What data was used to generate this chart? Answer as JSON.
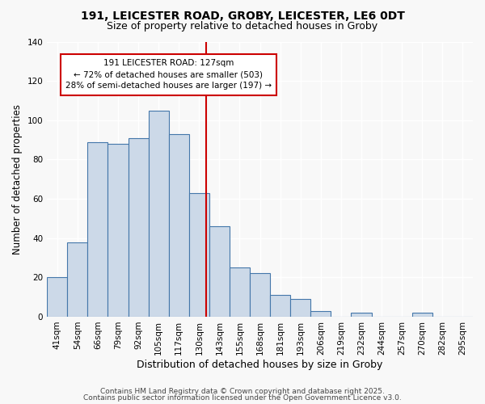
{
  "title": "191, LEICESTER ROAD, GROBY, LEICESTER, LE6 0DT",
  "subtitle": "Size of property relative to detached houses in Groby",
  "xlabel": "Distribution of detached houses by size in Groby",
  "ylabel": "Number of detached properties",
  "bar_labels": [
    "41sqm",
    "54sqm",
    "66sqm",
    "79sqm",
    "92sqm",
    "105sqm",
    "117sqm",
    "130sqm",
    "143sqm",
    "155sqm",
    "168sqm",
    "181sqm",
    "193sqm",
    "206sqm",
    "219sqm",
    "232sqm",
    "244sqm",
    "257sqm",
    "270sqm",
    "282sqm",
    "295sqm"
  ],
  "bar_values": [
    20,
    38,
    89,
    88,
    91,
    105,
    93,
    63,
    46,
    25,
    22,
    11,
    9,
    3,
    0,
    2,
    0,
    0,
    2,
    0,
    0
  ],
  "bar_color": "#ccd9e8",
  "bar_edge_color": "#4477aa",
  "vline_x": 7.35,
  "vline_color": "#cc0000",
  "annotation_title": "191 LEICESTER ROAD: 127sqm",
  "annotation_line1": "← 72% of detached houses are smaller (503)",
  "annotation_line2": "28% of semi-detached houses are larger (197) →",
  "ylim": [
    0,
    140
  ],
  "yticks": [
    0,
    20,
    40,
    60,
    80,
    100,
    120,
    140
  ],
  "footer1": "Contains HM Land Registry data © Crown copyright and database right 2025.",
  "footer2": "Contains public sector information licensed under the Open Government Licence v3.0.",
  "background_color": "#f8f8f8",
  "grid_color": "#ffffff",
  "title_fontsize": 10,
  "subtitle_fontsize": 9,
  "xlabel_fontsize": 9,
  "ylabel_fontsize": 8.5,
  "tick_fontsize": 7.5,
  "annotation_fontsize": 7.5,
  "footer_fontsize": 6.5
}
